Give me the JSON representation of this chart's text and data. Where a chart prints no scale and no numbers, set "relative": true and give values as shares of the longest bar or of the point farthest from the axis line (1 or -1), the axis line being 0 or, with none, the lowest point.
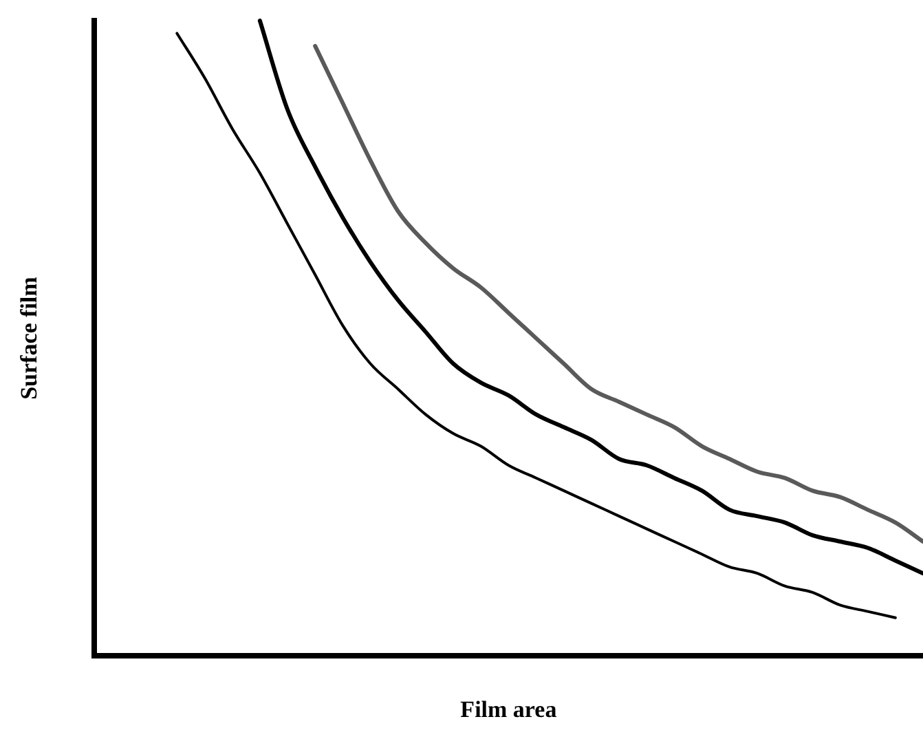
{
  "chart_data": {
    "type": "line",
    "relative": true,
    "xlabel": "Film area",
    "ylabel": "Surface film",
    "categories": [
      null,
      null,
      null,
      null,
      null,
      null,
      null,
      null,
      null,
      null,
      null,
      null,
      null,
      null,
      null,
      null,
      null,
      null,
      null,
      null,
      null,
      null,
      null,
      null,
      null,
      null,
      null,
      null,
      null,
      null,
      null
    ],
    "series": [
      {
        "color": "#000000",
        "values": [
          null,
          null,
          null,
          0.98,
          0.91,
          0.83,
          0.76,
          0.68,
          0.6,
          0.52,
          0.46,
          0.42,
          0.38,
          0.35,
          0.33,
          0.3,
          0.28,
          0.26,
          0.24,
          0.22,
          0.2,
          0.18,
          0.16,
          0.14,
          0.13,
          0.11,
          0.1,
          0.08,
          0.07,
          0.06,
          null
        ]
      },
      {
        "color": "#000000",
        "values": [
          null,
          null,
          null,
          null,
          null,
          null,
          1.0,
          0.86,
          0.77,
          0.69,
          0.62,
          0.56,
          0.51,
          0.46,
          0.43,
          0.41,
          0.38,
          0.36,
          0.34,
          0.31,
          0.3,
          0.28,
          0.26,
          0.23,
          0.22,
          0.21,
          0.19,
          0.18,
          0.17,
          0.15,
          0.13
        ]
      },
      {
        "color": "#5a5a5a",
        "values": [
          null,
          null,
          null,
          null,
          null,
          null,
          null,
          null,
          0.96,
          0.87,
          0.78,
          0.7,
          0.65,
          0.61,
          0.58,
          0.54,
          0.5,
          0.46,
          0.42,
          0.4,
          0.38,
          0.36,
          0.33,
          0.31,
          0.29,
          0.28,
          0.26,
          0.25,
          0.23,
          0.21,
          0.18
        ]
      }
    ],
    "legend": false,
    "marker": "none",
    "grid": false
  }
}
